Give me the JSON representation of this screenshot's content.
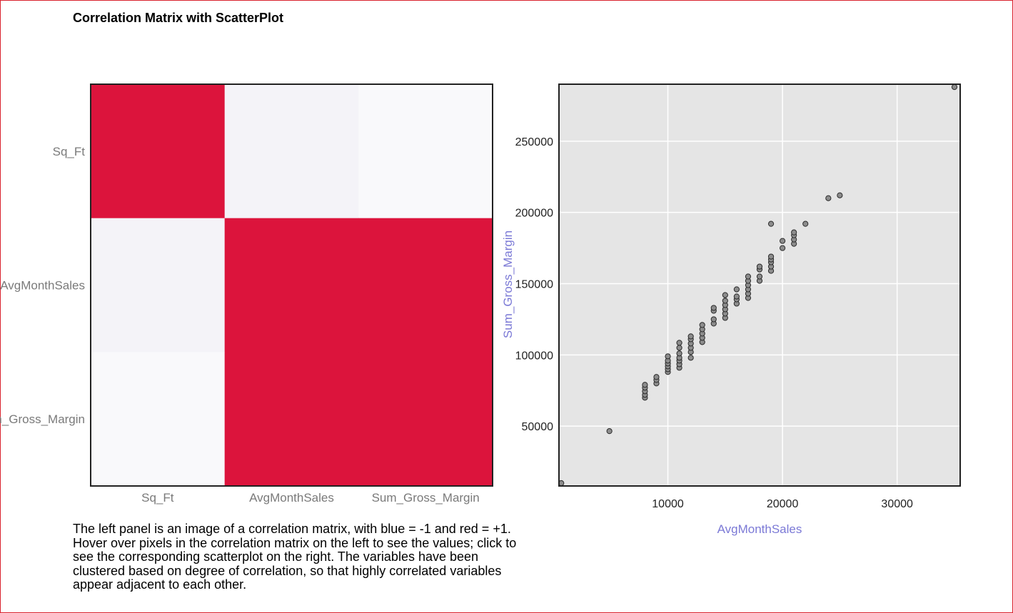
{
  "page": {
    "title": "Correlation Matrix with ScatterPlot",
    "description": "The left panel is an image of a correlation matrix, with blue = -1 and red = +1. Hover over pixels in the correlation matrix on the left to see the values; click to see the corresponding scatterplot on the right. The variables have been clustered based on degree of correlation, so that highly correlated variables appear adjacent to each other."
  },
  "chart_data": [
    {
      "type": "heatmap",
      "variables": [
        "Sq_Ft",
        "AvgMonthSales",
        "Sum_Gross_Margin"
      ],
      "row_labels": [
        "Sq_Ft",
        "AvgMonthSales",
        "Sum_Gross_Margin"
      ],
      "col_labels": [
        "Sq_Ft",
        "AvgMonthSales",
        "Sum_Gross_Margin"
      ],
      "values": [
        [
          1.0,
          0.03,
          0.01
        ],
        [
          0.03,
          1.0,
          0.99
        ],
        [
          0.01,
          0.99,
          1.0
        ]
      ],
      "colors": [
        "#dc143c",
        "#f4f3f8",
        "#f9f9fb",
        "#f4f3f8",
        "#dc143c",
        "#dc143c",
        "#f9f9fb",
        "#dc143c",
        "#dc143c"
      ]
    },
    {
      "type": "scatter",
      "xlabel": "AvgMonthSales",
      "ylabel": "Sum_Gross_Margin",
      "xlim": [
        500,
        35500
      ],
      "ylim": [
        8000,
        290000
      ],
      "xticks": [
        10000,
        20000,
        30000
      ],
      "yticks": [
        50000,
        100000,
        150000,
        200000,
        250000
      ],
      "grid": true,
      "background": "#e5e5e5",
      "point_color": "#8c8c8c",
      "points": [
        [
          700,
          10000
        ],
        [
          4900,
          46500
        ],
        [
          8000,
          70000
        ],
        [
          8000,
          72000
        ],
        [
          8000,
          74500
        ],
        [
          8000,
          77000
        ],
        [
          8000,
          79000
        ],
        [
          9000,
          80000
        ],
        [
          9000,
          82500
        ],
        [
          9000,
          84500
        ],
        [
          10000,
          88000
        ],
        [
          10000,
          90000
        ],
        [
          10000,
          92000
        ],
        [
          10000,
          94000
        ],
        [
          10000,
          96000
        ],
        [
          10000,
          99000
        ],
        [
          11000,
          91000
        ],
        [
          11000,
          93500
        ],
        [
          11000,
          96000
        ],
        [
          11000,
          98000
        ],
        [
          11000,
          101000
        ],
        [
          11000,
          105000
        ],
        [
          11000,
          108500
        ],
        [
          12000,
          98000
        ],
        [
          12000,
          102000
        ],
        [
          12000,
          105000
        ],
        [
          12000,
          108000
        ],
        [
          12000,
          111000
        ],
        [
          12000,
          113000
        ],
        [
          13000,
          109000
        ],
        [
          13000,
          112000
        ],
        [
          13000,
          115000
        ],
        [
          13000,
          118000
        ],
        [
          13000,
          121000
        ],
        [
          14000,
          122000
        ],
        [
          14000,
          125000
        ],
        [
          14000,
          131000
        ],
        [
          14000,
          133000
        ],
        [
          15000,
          126000
        ],
        [
          15000,
          129000
        ],
        [
          15000,
          132000
        ],
        [
          15000,
          135000
        ],
        [
          15000,
          138000
        ],
        [
          15000,
          142000
        ],
        [
          16000,
          136000
        ],
        [
          16000,
          139000
        ],
        [
          16000,
          141000
        ],
        [
          16000,
          146000
        ],
        [
          17000,
          140000
        ],
        [
          17000,
          143000
        ],
        [
          17000,
          146000
        ],
        [
          17000,
          149000
        ],
        [
          17000,
          152000
        ],
        [
          17000,
          155000
        ],
        [
          18000,
          152000
        ],
        [
          18000,
          155000
        ],
        [
          18000,
          160000
        ],
        [
          18000,
          162000
        ],
        [
          19000,
          159000
        ],
        [
          19000,
          162000
        ],
        [
          19000,
          165000
        ],
        [
          19000,
          167000
        ],
        [
          19000,
          169000
        ],
        [
          19000,
          192000
        ],
        [
          20000,
          175000
        ],
        [
          20000,
          180000
        ],
        [
          21000,
          178000
        ],
        [
          21000,
          181000
        ],
        [
          21000,
          184000
        ],
        [
          21000,
          186000
        ],
        [
          22000,
          192000
        ],
        [
          24000,
          210000
        ],
        [
          25000,
          212000
        ],
        [
          35000,
          288000
        ]
      ]
    }
  ]
}
